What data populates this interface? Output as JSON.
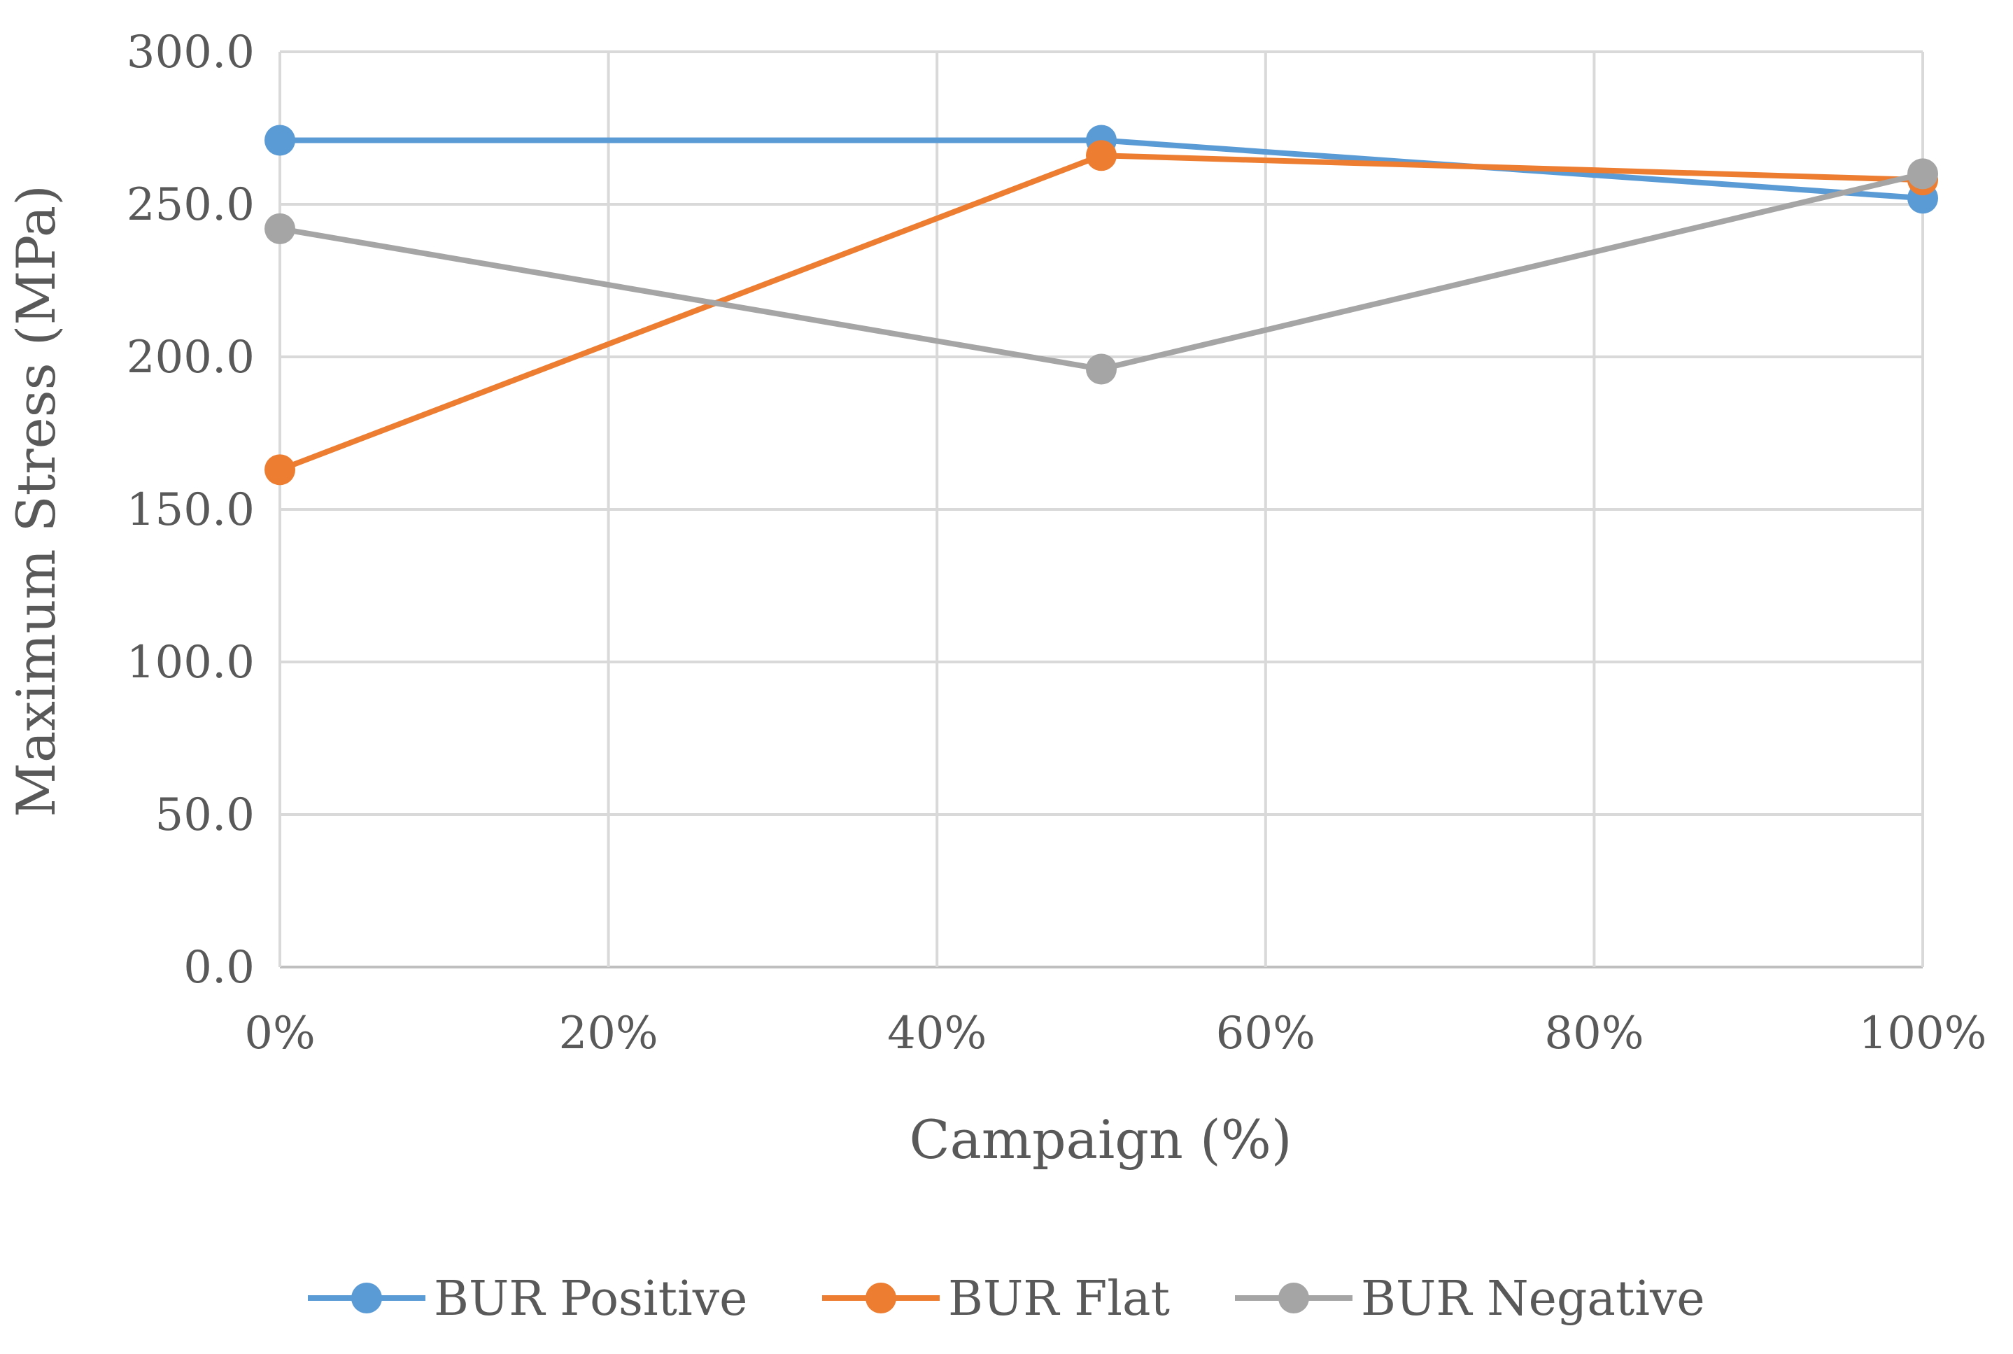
{
  "chart_data": {
    "type": "line",
    "title": "",
    "xlabel": "Campaign (%)",
    "ylabel": "Maximum Stress (MPa)",
    "x": [
      0,
      50,
      100
    ],
    "xlim": [
      0,
      100
    ],
    "ylim": [
      0,
      300
    ],
    "x_ticks": [
      0,
      20,
      40,
      60,
      80,
      100
    ],
    "x_tick_labels": [
      "0%",
      "20%",
      "40%",
      "60%",
      "80%",
      "100%"
    ],
    "y_ticks": [
      0,
      50,
      100,
      150,
      200,
      250,
      300
    ],
    "y_tick_labels": [
      "0.0",
      "50.0",
      "100.0",
      "150.0",
      "200.0",
      "250.0",
      "300.0"
    ],
    "grid": true,
    "legend_position": "bottom",
    "series": [
      {
        "name": "BUR Positive",
        "color": "#5b9bd5",
        "values": [
          271,
          271,
          252
        ]
      },
      {
        "name": "BUR Flat",
        "color": "#ed7d31",
        "values": [
          163,
          266,
          258
        ]
      },
      {
        "name": "BUR Negative",
        "color": "#a5a5a5",
        "values": [
          242,
          196,
          260
        ]
      }
    ]
  }
}
